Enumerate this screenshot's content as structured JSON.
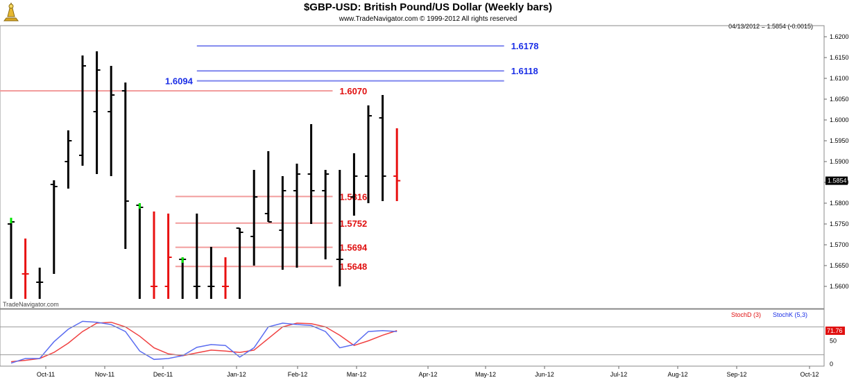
{
  "header": {
    "title": "$GBP-USD:  British Pound/US Dollar  (Weekly bars)",
    "copyright": "www.TradeNavigator.com © 1999-2012 All rights reserved",
    "last_info": "04/13/2012 = 1.5854 (-0.0015)",
    "watermark": "TradeNavigator.com"
  },
  "colors": {
    "up": "#00e600",
    "down": "#e81010",
    "neutral": "#000000",
    "blue_level": "#7f86ee",
    "red_level": "#f29c9c",
    "stoch_d": "#f04040",
    "stoch_k": "#5a6cf0"
  },
  "chart_data": [
    {
      "type": "ohlc",
      "ylim": [
        1.556,
        1.6215
      ],
      "yticks": [
        "1.6200",
        "1.6150",
        "1.6100",
        "1.6050",
        "1.6000",
        "1.5950",
        "1.5900",
        "1.5850",
        "1.5800",
        "1.5750",
        "1.5700",
        "1.5650",
        "1.5600"
      ],
      "xticks": [
        "Oct-11",
        "Nov-11",
        "Dec-11",
        "Jan-12",
        "Feb-12",
        "Mar-12",
        "Apr-12",
        "May-12",
        "Jun-12",
        "Jul-12",
        "Aug-12",
        "Sep-12",
        "Oct-12"
      ],
      "last_price": "1.5854",
      "bars": [
        {
          "o": 1.575,
          "h": 1.5765,
          "l": 1.557,
          "c": 1.5755,
          "color": "neutral",
          "tip": "up"
        },
        {
          "o": 1.563,
          "h": 1.5715,
          "l": 1.557,
          "c": 1.563,
          "color": "down"
        },
        {
          "o": 1.561,
          "h": 1.5645,
          "l": 1.557,
          "c": 1.561,
          "color": "neutral"
        },
        {
          "o": 1.5845,
          "h": 1.5855,
          "l": 1.563,
          "c": 1.584,
          "color": "neutral"
        },
        {
          "o": 1.59,
          "h": 1.5975,
          "l": 1.5835,
          "c": 1.595,
          "color": "neutral"
        },
        {
          "o": 1.5915,
          "h": 1.6155,
          "l": 1.589,
          "c": 1.613,
          "color": "neutral"
        },
        {
          "o": 1.602,
          "h": 1.6165,
          "l": 1.587,
          "c": 1.612,
          "color": "neutral"
        },
        {
          "o": 1.602,
          "h": 1.613,
          "l": 1.5865,
          "c": 1.606,
          "color": "neutral"
        },
        {
          "o": 1.607,
          "h": 1.609,
          "l": 1.569,
          "c": 1.5805,
          "color": "neutral"
        },
        {
          "o": 1.5795,
          "h": 1.58,
          "l": 1.557,
          "c": 1.579,
          "color": "neutral",
          "tip": "up"
        },
        {
          "o": 1.56,
          "h": 1.578,
          "l": 1.557,
          "c": 1.56,
          "color": "down"
        },
        {
          "o": 1.56,
          "h": 1.5775,
          "l": 1.557,
          "c": 1.567,
          "color": "down"
        },
        {
          "o": 1.5665,
          "h": 1.567,
          "l": 1.557,
          "c": 1.5665,
          "color": "neutral",
          "tip": "up"
        },
        {
          "o": 1.56,
          "h": 1.5775,
          "l": 1.557,
          "c": 1.56,
          "color": "neutral"
        },
        {
          "o": 1.56,
          "h": 1.5695,
          "l": 1.557,
          "c": 1.56,
          "color": "neutral"
        },
        {
          "o": 1.56,
          "h": 1.567,
          "l": 1.557,
          "c": 1.56,
          "color": "down"
        },
        {
          "o": 1.574,
          "h": 1.574,
          "l": 1.557,
          "c": 1.573,
          "color": "neutral"
        },
        {
          "o": 1.572,
          "h": 1.588,
          "l": 1.565,
          "c": 1.5815,
          "color": "neutral"
        },
        {
          "o": 1.5775,
          "h": 1.5925,
          "l": 1.5755,
          "c": 1.5755,
          "color": "neutral"
        },
        {
          "o": 1.5735,
          "h": 1.5865,
          "l": 1.564,
          "c": 1.583,
          "color": "neutral"
        },
        {
          "o": 1.583,
          "h": 1.5895,
          "l": 1.5645,
          "c": 1.587,
          "color": "neutral"
        },
        {
          "o": 1.587,
          "h": 1.599,
          "l": 1.575,
          "c": 1.583,
          "color": "neutral"
        },
        {
          "o": 1.583,
          "h": 1.588,
          "l": 1.5665,
          "c": 1.587,
          "color": "neutral"
        },
        {
          "o": 1.5665,
          "h": 1.588,
          "l": 1.56,
          "c": 1.5665,
          "color": "neutral"
        },
        {
          "o": 1.5815,
          "h": 1.592,
          "l": 1.577,
          "c": 1.5865,
          "color": "neutral"
        },
        {
          "o": 1.5865,
          "h": 1.6035,
          "l": 1.58,
          "c": 1.601,
          "color": "neutral"
        },
        {
          "o": 1.6005,
          "h": 1.606,
          "l": 1.5805,
          "c": 1.5865,
          "color": "neutral"
        },
        {
          "o": 1.5865,
          "h": 1.598,
          "l": 1.5805,
          "c": 1.5854,
          "color": "down"
        }
      ],
      "levels": [
        {
          "value": 1.6178,
          "label": "1.6178",
          "color": "blue",
          "from": 13,
          "to": 34.5,
          "label_side": "right"
        },
        {
          "value": 1.6118,
          "label": "1.6118",
          "color": "blue",
          "from": 13,
          "to": 34.5,
          "label_side": "right"
        },
        {
          "value": 1.6094,
          "label": "1.6094",
          "color": "blue",
          "from": 13,
          "to": 34.5,
          "label_side": "left"
        },
        {
          "value": 1.607,
          "label": "1.6070",
          "color": "red",
          "from": -1,
          "to": 22.5,
          "label_side": "right"
        },
        {
          "value": 1.5816,
          "label": "1.5816",
          "color": "red",
          "from": 11.5,
          "to": 22.5,
          "label_side": "right"
        },
        {
          "value": 1.5752,
          "label": "1.5752",
          "color": "red",
          "from": 11.5,
          "to": 22.5,
          "label_side": "right"
        },
        {
          "value": 1.5694,
          "label": "1.5694",
          "color": "red",
          "from": 11.5,
          "to": 22.5,
          "label_side": "right"
        },
        {
          "value": 1.5648,
          "label": "1.5648",
          "color": "red",
          "from": 11.5,
          "to": 22.5,
          "label_side": "right"
        }
      ]
    },
    {
      "type": "line",
      "ylim": [
        0,
        100
      ],
      "yticks": [
        "50",
        "0"
      ],
      "reference_lines": [
        80,
        20
      ],
      "legend": [
        "StochD (3)",
        "StochK (5,3)"
      ],
      "last_value": "71.76",
      "series": [
        {
          "name": "StochD (3)",
          "color": "stoch_d",
          "values": [
            5,
            8,
            12,
            25,
            45,
            70,
            88,
            90,
            80,
            60,
            35,
            22,
            18,
            24,
            30,
            28,
            25,
            30,
            55,
            80,
            88,
            87,
            80,
            62,
            40,
            50,
            62,
            72
          ]
        },
        {
          "name": "StochK (5,3)",
          "color": "stoch_k",
          "values": [
            2,
            12,
            12,
            48,
            75,
            92,
            90,
            85,
            70,
            28,
            10,
            12,
            18,
            36,
            42,
            40,
            15,
            35,
            80,
            88,
            85,
            83,
            70,
            35,
            42,
            70,
            72,
            70
          ]
        }
      ]
    }
  ]
}
